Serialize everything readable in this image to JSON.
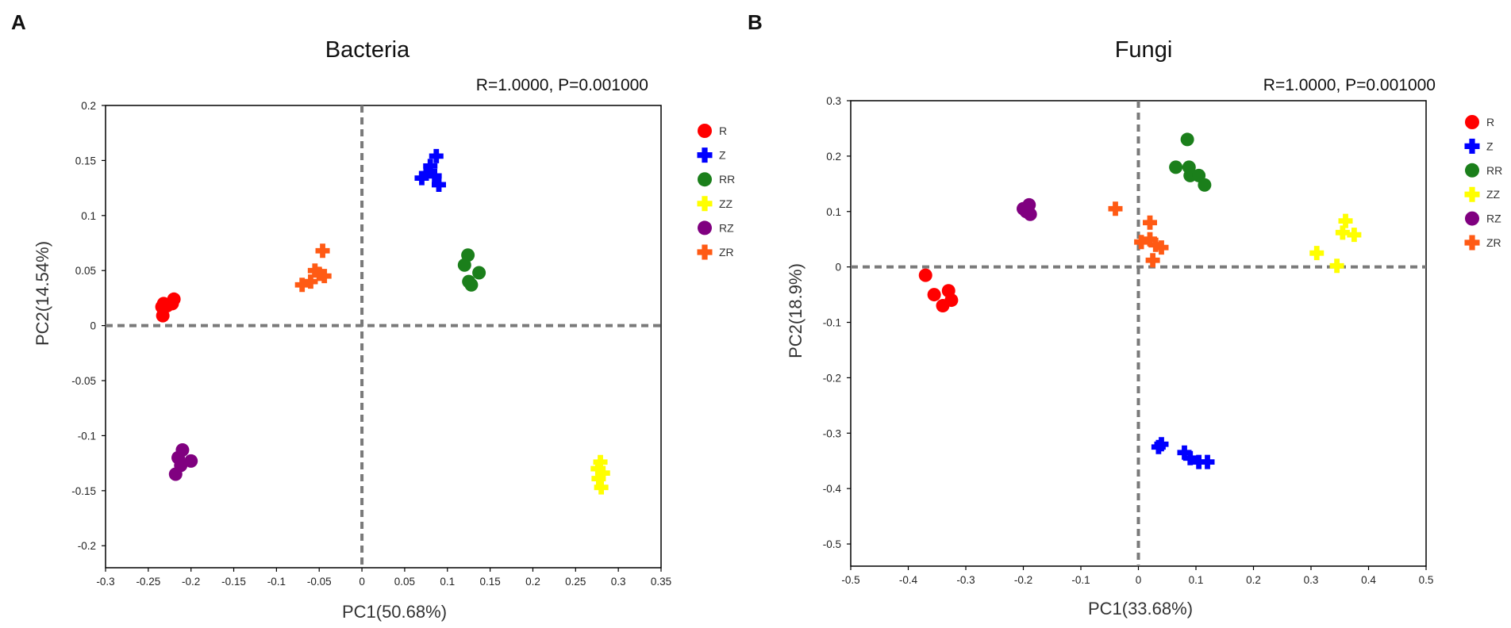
{
  "chart_data": [
    {
      "type": "scatter",
      "panel_label": "A",
      "title": "Bacteria",
      "stat_text": "R=1.0000, P=0.001000",
      "xlabel": "PC1(50.68%)",
      "ylabel": "PC2(14.54%)",
      "xlim": [
        -0.3,
        0.35
      ],
      "ylim": [
        -0.22,
        0.2
      ],
      "xticks": [
        -0.3,
        -0.25,
        -0.2,
        -0.15,
        -0.1,
        -0.05,
        0,
        0.05,
        0.1,
        0.15,
        0.2,
        0.25,
        0.3,
        0.35
      ],
      "yticks": [
        0.2,
        0.15,
        0.1,
        0.05,
        0,
        -0.05,
        -0.1,
        -0.15,
        -0.2
      ],
      "xtick_labels": [
        "-0.3",
        "-0.25",
        "-0.2",
        "-0.15",
        "-0.1",
        "-0.05",
        "0",
        "0.05",
        "0.1",
        "0.15",
        "0.2",
        "0.25",
        "0.3",
        "0.35"
      ],
      "ytick_labels": [
        "0.2",
        "0.15",
        "0.1",
        "0.05",
        "0",
        "-0.05",
        "-0.1",
        "-0.15",
        "-0.2"
      ],
      "reference_lines": {
        "x": 0,
        "y": 0,
        "style": "dashed"
      },
      "legend_position": "right",
      "series": [
        {
          "name": "R",
          "marker": "circle",
          "color": "#ff0000",
          "points": [
            [
              -0.232,
              0.02
            ],
            [
              -0.228,
              0.018
            ],
            [
              -0.22,
              0.024
            ],
            [
              -0.222,
              0.02
            ],
            [
              -0.234,
              0.017
            ],
            [
              -0.233,
              0.009
            ]
          ]
        },
        {
          "name": "Z",
          "marker": "plus",
          "color": "#0000ff",
          "points": [
            [
              0.087,
              0.154
            ],
            [
              0.08,
              0.145
            ],
            [
              0.075,
              0.138
            ],
            [
              0.07,
              0.134
            ],
            [
              0.085,
              0.136
            ],
            [
              0.09,
              0.128
            ]
          ]
        },
        {
          "name": "RR",
          "marker": "circle",
          "color": "#1b7f1b",
          "points": [
            [
              0.124,
              0.064
            ],
            [
              0.12,
              0.055
            ],
            [
              0.137,
              0.048
            ],
            [
              0.125,
              0.04
            ],
            [
              0.128,
              0.037
            ]
          ]
        },
        {
          "name": "ZZ",
          "marker": "plus",
          "color": "#ffff00",
          "points": [
            [
              0.279,
              -0.124
            ],
            [
              0.276,
              -0.13
            ],
            [
              0.282,
              -0.134
            ],
            [
              0.277,
              -0.139
            ],
            [
              0.28,
              -0.147
            ]
          ]
        },
        {
          "name": "RZ",
          "marker": "circle",
          "color": "#800080",
          "points": [
            [
              -0.21,
              -0.113
            ],
            [
              -0.215,
              -0.12
            ],
            [
              -0.2,
              -0.123
            ],
            [
              -0.212,
              -0.127
            ],
            [
              -0.218,
              -0.135
            ]
          ]
        },
        {
          "name": "ZR",
          "marker": "plus",
          "color": "#ff5a14",
          "points": [
            [
              -0.046,
              0.068
            ],
            [
              -0.055,
              0.05
            ],
            [
              -0.05,
              0.047
            ],
            [
              -0.044,
              0.045
            ],
            [
              -0.06,
              0.04
            ],
            [
              -0.07,
              0.037
            ]
          ]
        }
      ]
    },
    {
      "type": "scatter",
      "panel_label": "B",
      "title": "Fungi",
      "stat_text": "R=1.0000, P=0.001000",
      "xlabel": "PC1(33.68%)",
      "ylabel": "PC2(18.9%)",
      "xlim": [
        -0.5,
        0.5
      ],
      "ylim": [
        -0.54,
        0.3
      ],
      "xticks": [
        -0.5,
        -0.4,
        -0.3,
        -0.2,
        -0.1,
        0,
        0.1,
        0.2,
        0.3,
        0.4,
        0.5
      ],
      "yticks": [
        0.3,
        0.2,
        0.1,
        0,
        -0.1,
        -0.2,
        -0.3,
        -0.4,
        -0.5
      ],
      "xtick_labels": [
        "-0.5",
        "-0.4",
        "-0.3",
        "-0.2",
        "-0.1",
        "0",
        "0.1",
        "0.2",
        "0.3",
        "0.4",
        "0.5"
      ],
      "ytick_labels": [
        "0.3",
        "0.2",
        "0.1",
        "0",
        "-0.1",
        "-0.2",
        "-0.3",
        "-0.4",
        "-0.5"
      ],
      "reference_lines": {
        "x": 0,
        "y": 0,
        "style": "dashed"
      },
      "legend_position": "right",
      "series": [
        {
          "name": "R",
          "marker": "circle",
          "color": "#ff0000",
          "points": [
            [
              -0.37,
              -0.015
            ],
            [
              -0.355,
              -0.05
            ],
            [
              -0.33,
              -0.043
            ],
            [
              -0.325,
              -0.06
            ],
            [
              -0.34,
              -0.07
            ]
          ]
        },
        {
          "name": "Z",
          "marker": "plus",
          "color": "#0000ff",
          "points": [
            [
              0.04,
              -0.32
            ],
            [
              0.035,
              -0.325
            ],
            [
              0.08,
              -0.335
            ],
            [
              0.09,
              -0.345
            ],
            [
              0.105,
              -0.352
            ],
            [
              0.12,
              -0.352
            ]
          ]
        },
        {
          "name": "RR",
          "marker": "circle",
          "color": "#1b7f1b",
          "points": [
            [
              0.085,
              0.23
            ],
            [
              0.065,
              0.18
            ],
            [
              0.088,
              0.18
            ],
            [
              0.09,
              0.165
            ],
            [
              0.105,
              0.165
            ],
            [
              0.115,
              0.148
            ]
          ]
        },
        {
          "name": "ZZ",
          "marker": "plus",
          "color": "#ffff00",
          "points": [
            [
              0.36,
              0.083
            ],
            [
              0.355,
              0.062
            ],
            [
              0.375,
              0.058
            ],
            [
              0.31,
              0.025
            ],
            [
              0.345,
              0.002
            ]
          ]
        },
        {
          "name": "RZ",
          "marker": "circle",
          "color": "#800080",
          "points": [
            [
              -0.2,
              0.105
            ],
            [
              -0.19,
              0.112
            ],
            [
              -0.195,
              0.1
            ],
            [
              -0.188,
              0.095
            ]
          ]
        },
        {
          "name": "ZR",
          "marker": "plus",
          "color": "#ff5a14",
          "points": [
            [
              -0.04,
              0.105
            ],
            [
              0.02,
              0.08
            ],
            [
              0.02,
              0.05
            ],
            [
              0.005,
              0.045
            ],
            [
              0.03,
              0.04
            ],
            [
              0.04,
              0.035
            ],
            [
              0.025,
              0.012
            ]
          ]
        }
      ]
    }
  ]
}
